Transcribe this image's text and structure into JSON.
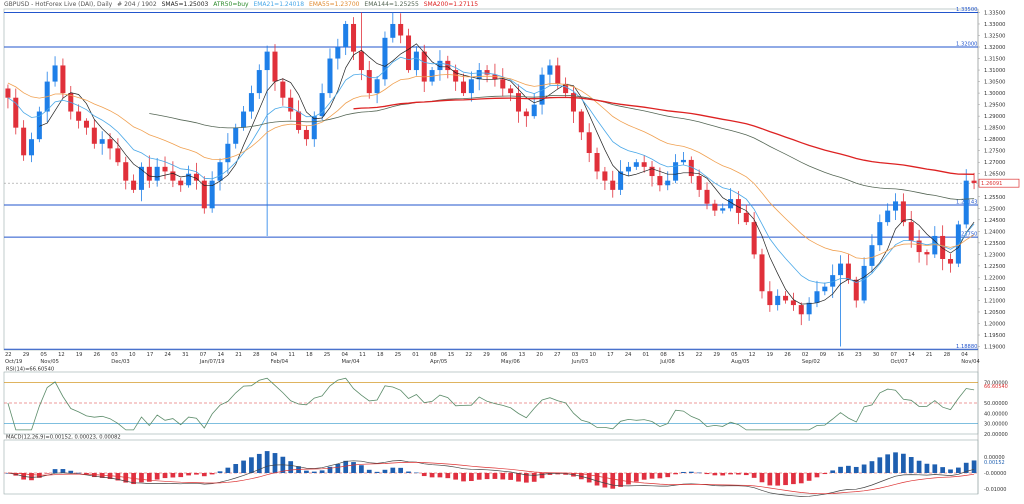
{
  "header": {
    "symbol": "GBPUSD - HotForex Live (DAI), Daily",
    "price": "# 204 / 1902",
    "sma5": "SMA5=1.25003",
    "atr": "ATR50=buy",
    "ema21": "EMA21=1.24018",
    "ema55": "EMA55=1.23700",
    "ema144": "EMA144=1.25255",
    "sma200": "SMA200=1.27115"
  },
  "colors": {
    "bull": "#1e7fe8",
    "bear": "#e0303a",
    "sma5": "#222222",
    "ema21": "#4aa8e8",
    "ema55": "#f0a050",
    "ema144": "#556655",
    "sma200": "#dd2222",
    "hline": "#2255cc",
    "rsi": "#5c8c6a",
    "macd_up": "#1e5fb0",
    "macd_down": "#e03040"
  },
  "right_axis_prices": [
    "1.33500",
    "1.33000",
    "1.32500",
    "1.32000",
    "1.31500",
    "1.31000",
    "1.30500",
    "1.30000",
    "1.29500",
    "1.29000",
    "1.28500",
    "1.28000",
    "1.27500",
    "1.27000",
    "1.26500",
    "1.26000",
    "1.25500",
    "1.25000",
    "1.24500",
    "1.24000",
    "1.23500",
    "1.23000",
    "1.22500",
    "1.22000",
    "1.21500",
    "1.21000",
    "1.20500",
    "1.20000",
    "1.19500",
    "1.19000"
  ],
  "level_labels": {
    "l1": "1.33500",
    "l2": "1.32000",
    "l3": "1.25143",
    "l4": "1.23750",
    "l5": "1.18880",
    "current": "1.26091"
  },
  "rsi_label": "RSI(14)=66.60540",
  "rsi_axis": [
    "70.00000",
    "66.60540",
    "50.00000",
    "40.00000",
    "30.00000",
    "20.00000"
  ],
  "macd_label": "MACD(12,26,9)=0.00152, 0.00023, 0.00082",
  "macd_axis": [
    "0.00000",
    "0.00152",
    "-0.00000",
    "-0.01000"
  ],
  "x_axis": {
    "days": [
      "22",
      "29",
      "05",
      "12",
      "19",
      "26",
      "03",
      "10",
      "17",
      "24",
      "31",
      "07",
      "14",
      "21",
      "28",
      "04",
      "11",
      "18",
      "25",
      "04",
      "11",
      "18",
      "25",
      "01",
      "08",
      "15",
      "22",
      "29",
      "06",
      "13",
      "20",
      "27",
      "03",
      "10",
      "17",
      "24",
      "01",
      "08",
      "15",
      "22",
      "29",
      "05",
      "12",
      "19",
      "26",
      "02",
      "09",
      "16",
      "23",
      "30",
      "07",
      "14",
      "21",
      "28",
      "04"
    ],
    "months": [
      {
        "label": "Oct/19",
        "day": 0
      },
      {
        "label": "Nov/05",
        "day": 2
      },
      {
        "label": "Dec/03",
        "day": 6
      },
      {
        "label": "Jan/07/19",
        "day": 11
      },
      {
        "label": "Feb/04",
        "day": 15
      },
      {
        "label": "Mar/04",
        "day": 19
      },
      {
        "label": "Apr/05",
        "day": 24
      },
      {
        "label": "May/06",
        "day": 28
      },
      {
        "label": "Jun/03",
        "day": 32
      },
      {
        "label": "Jul/08",
        "day": 37
      },
      {
        "label": "Aug/05",
        "day": 41
      },
      {
        "label": "Sep/02",
        "day": 45
      },
      {
        "label": "Oct/07",
        "day": 50
      },
      {
        "label": "Nov/04",
        "day": 54
      }
    ]
  },
  "chart_data": {
    "type": "candlestick",
    "ylim": [
      1.1885,
      1.3365
    ],
    "hlines": [
      1.335,
      1.32,
      1.25143,
      1.2375,
      1.1888
    ],
    "current_price": 1.2609,
    "closes": [
      1.298,
      1.285,
      1.273,
      1.28,
      1.292,
      1.305,
      1.312,
      1.3,
      1.292,
      1.288,
      1.285,
      1.278,
      1.28,
      1.276,
      1.27,
      1.262,
      1.258,
      1.268,
      1.262,
      1.268,
      1.266,
      1.262,
      1.26,
      1.265,
      1.262,
      1.25,
      1.262,
      1.27,
      1.278,
      1.285,
      1.292,
      1.3,
      1.31,
      1.318,
      1.305,
      1.298,
      1.292,
      1.284,
      1.28,
      1.29,
      1.3,
      1.315,
      1.32,
      1.33,
      1.318,
      1.31,
      1.3,
      1.306,
      1.324,
      1.33,
      1.325,
      1.31,
      1.318,
      1.305,
      1.31,
      1.314,
      1.31,
      1.305,
      1.3,
      1.306,
      1.31,
      1.308,
      1.306,
      1.302,
      1.3,
      1.292,
      1.29,
      1.295,
      1.308,
      1.312,
      1.304,
      1.3,
      1.292,
      1.283,
      1.274,
      1.266,
      1.262,
      1.258,
      1.266,
      1.268,
      1.27,
      1.268,
      1.264,
      1.26,
      1.262,
      1.27,
      1.271,
      1.264,
      1.258,
      1.252,
      1.249,
      1.25,
      1.254,
      1.248,
      1.244,
      1.23,
      1.214,
      1.208,
      1.212,
      1.21,
      1.208,
      1.204,
      1.209,
      1.214,
      1.216,
      1.221,
      1.226,
      1.219,
      1.21,
      1.225,
      1.234,
      1.244,
      1.249,
      1.253,
      1.244,
      1.236,
      1.231,
      1.23,
      1.238,
      1.228,
      1.226,
      1.243,
      1.262,
      1.261
    ],
    "axis_label_prices": [
      1.335,
      1.33,
      1.325,
      1.32,
      1.315,
      1.31,
      1.305,
      1.3,
      1.295,
      1.29,
      1.285,
      1.28,
      1.275,
      1.27,
      1.265,
      1.26,
      1.255,
      1.25,
      1.245,
      1.24,
      1.235,
      1.23,
      1.225,
      1.22,
      1.215,
      1.21,
      1.205,
      1.2,
      1.195,
      1.19
    ]
  }
}
